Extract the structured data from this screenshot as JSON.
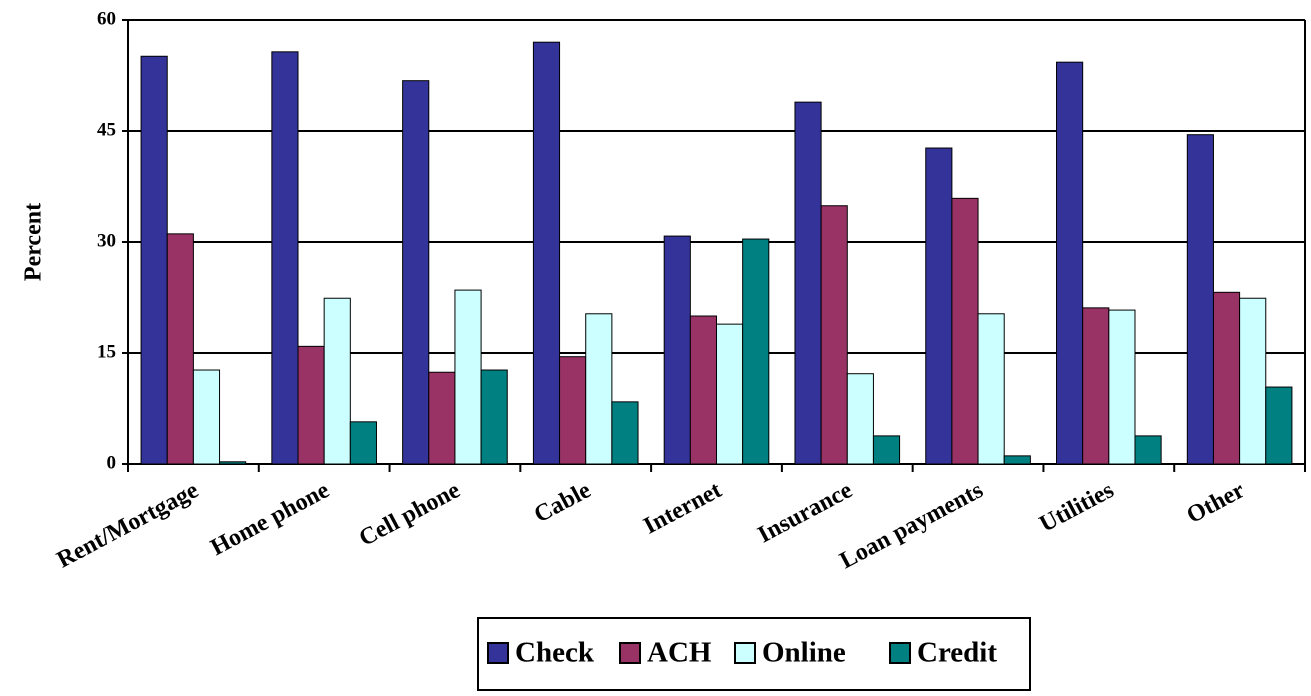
{
  "chart_data": {
    "type": "bar",
    "ylabel": "Percent",
    "categories": [
      "Rent/Mortgage",
      "Home phone",
      "Cell phone",
      "Cable",
      "Internet",
      "Insurance",
      "Loan payments",
      "Utilities",
      "Other"
    ],
    "series": [
      {
        "name": "Check",
        "color": "#333399",
        "values": [
          55.1,
          55.7,
          51.8,
          57.0,
          30.8,
          48.9,
          42.7,
          54.3,
          44.5
        ]
      },
      {
        "name": "ACH",
        "color": "#993366",
        "values": [
          31.1,
          15.9,
          12.4,
          14.5,
          20.0,
          34.9,
          35.9,
          21.1,
          23.2
        ]
      },
      {
        "name": "Online",
        "color": "#ccffff",
        "values": [
          12.7,
          22.4,
          23.5,
          20.3,
          18.9,
          12.2,
          20.3,
          20.8,
          22.4
        ]
      },
      {
        "name": "Credit",
        "color": "#008080",
        "values": [
          0.3,
          5.7,
          12.7,
          8.4,
          30.4,
          3.8,
          1.1,
          3.8,
          10.4
        ]
      }
    ],
    "ylim": [
      0,
      60
    ],
    "yticks": [
      0,
      15,
      30,
      45,
      60
    ],
    "grid": true,
    "legend": "bottom"
  }
}
